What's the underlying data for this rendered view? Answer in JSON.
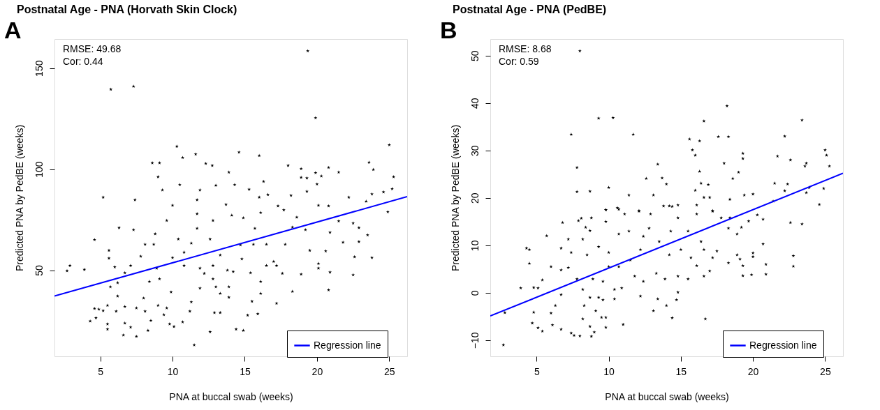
{
  "chart_data": [
    {
      "type": "scatter",
      "title": "Postnatal Age - PNA (Horvath Skin Clock)",
      "xlabel": "PNA at buccal swab (weeks)",
      "ylabel": "Predicted PNA by PedBE (weeks)",
      "xlim": [
        1.83,
        26.24
      ],
      "ylim": [
        7.4,
        164.4
      ],
      "xticks": [
        5,
        10,
        15,
        20,
        25
      ],
      "yticks": [
        50,
        100,
        150
      ],
      "legend": "bottom right",
      "annotations": [
        "A",
        "RMSE: 49.68",
        "Cor: 0.44"
      ],
      "series": [
        {
          "color": "#000000",
          "marker": "star",
          "x": [
            19.36,
            5.73,
            7.3,
            19.9,
            25.0,
            10.3,
            10.7,
            11.6,
            14.6,
            16.0,
            8.6,
            9.1,
            12.3,
            12.75,
            18.0,
            18.9,
            20.8,
            23.6,
            23.9,
            21.5,
            19.9,
            13.9,
            25.3,
            20.3,
            18.9,
            19.3,
            9.0,
            16.3,
            10.5,
            13.0,
            14.3,
            20.0,
            5.2,
            9.3,
            11.9,
            15.3,
            19.3,
            25.2,
            24.6,
            23.8,
            22.2,
            16.6,
            18.2,
            7.4,
            11.7,
            16.0,
            23.4,
            2.7,
            2.9,
            3.9,
            4.6,
            4.3,
            4.7,
            4.6,
            4.9,
            5.2,
            5.5,
            5.5,
            5.5,
            6.6,
            7.5,
            8.3,
            11.5,
            12.6,
            14.4,
            14.9,
            15.2,
            15.9,
            12.9,
            13.3,
            17.2,
            20.8,
            18.3,
            20.9,
            22.5,
            18.9,
            20.1,
            20.1,
            22.6,
            23.8,
            24.9,
            22.9,
            21.8,
            20.9,
            21.5,
            22.5,
            22.9,
            23.5,
            19.5,
            20.6,
            20.1,
            20.8,
            19.2,
            18.6,
            17.7,
            17.3,
            17.8,
            17.0,
            17.6,
            16.1,
            16.5,
            16.1,
            15.4,
            15.5,
            14.8,
            14.7,
            13.9,
            13.8,
            14.2,
            13.3,
            13.0,
            12.2,
            11.9,
            11.3,
            11.2,
            10.7,
            10.1,
            9.8,
            9.4,
            9.6,
            9.0,
            9.1,
            8.9,
            8.5,
            8.1,
            8.0,
            7.5,
            7.1,
            6.7,
            6.7,
            6.2,
            6.1,
            6.2,
            5.7,
            6.0,
            5.6,
            5.6,
            6.3,
            7.3,
            6.7,
            7.1,
            7.8,
            8.1,
            8.7,
            8.8,
            9.6,
            10.0,
            10.4,
            10.0,
            10.8,
            10.8,
            11.3,
            11.7,
            11.7,
            12.6,
            12.8,
            13.7,
            14.1,
            14.9,
            16.1,
            15.7,
            16.5,
            15.6,
            13.3,
            12.8,
            13.9,
            11.9,
            9.9,
            8.4,
            12.8,
            18.3,
            17.2
          ],
          "values": [
            158.5,
            139.5,
            141,
            125.4,
            112,
            111.3,
            105.7,
            107.4,
            108.4,
            106.7,
            103.1,
            103.1,
            102.8,
            101.8,
            101.8,
            100.2,
            100.8,
            103.4,
            99.8,
            98.5,
            98.2,
            98.5,
            96.2,
            96.6,
            95.9,
            95.6,
            96.2,
            93.9,
            92.3,
            92.0,
            92.3,
            92.6,
            86.1,
            89.7,
            89.7,
            90.0,
            89.0,
            90.3,
            88.7,
            87.7,
            86.1,
            87.4,
            87.0,
            84.8,
            84.8,
            86.1,
            84.1,
            49.7,
            52.3,
            50.3,
            65.1,
            24.8,
            26.4,
            31.0,
            30.7,
            30.0,
            32.6,
            20.8,
            23.4,
            17.9,
            17.2,
            20.2,
            13.0,
            19.5,
            20.8,
            20.2,
            27.7,
            28.4,
            29.0,
            29.0,
            33.6,
            40.2,
            39.5,
            49.0,
            47.7,
            48.0,
            51.0,
            53.3,
            56.6,
            56.2,
            78.9,
            64.1,
            63.8,
            68.7,
            74.3,
            73.3,
            71.0,
            67.4,
            59.8,
            59.5,
            82.1,
            81.8,
            70.0,
            76.2,
            79.8,
            81.8,
            62.8,
            54.3,
            48.4,
            44.4,
            52.3,
            38.5,
            48.7,
            34.6,
            55.6,
            62.5,
            36.6,
            50.0,
            49.3,
            38.5,
            41.8,
            48.4,
            41.1,
            34.3,
            29.7,
            24.4,
            22.1,
            23.4,
            28.0,
            31.3,
            32.6,
            45.7,
            51.0,
            25.1,
            29.7,
            36.2,
            31.3,
            21.8,
            23.8,
            32.0,
            37.2,
            29.7,
            43.8,
            41.8,
            51.6,
            55.9,
            59.8,
            71.0,
            70.0,
            48.7,
            52.3,
            56.9,
            62.8,
            62.8,
            68.0,
            74.6,
            82.1,
            65.4,
            56.2,
            52.3,
            58.9,
            63.4,
            70.7,
            77.9,
            65.4,
            74.6,
            82.5,
            77.2,
            75.9,
            78.5,
            70.7,
            62.8,
            62.8,
            57.5,
            52.3,
            41.8,
            51.0,
            39.2,
            44.4,
            45.7,
            71.3,
            52.3
          ]
        },
        {
          "name": "Regression line",
          "type": "line",
          "color": "#0000ff",
          "x": [
            1.83,
            26.24
          ],
          "values": [
            37.2,
            86.4
          ]
        }
      ]
    },
    {
      "type": "scatter",
      "title": "Postnatal Age - PNA (PedBE)",
      "xlabel": "PNA at buccal swab (weeks)",
      "ylabel": "Predicted PNA by PedBE (weeks)",
      "xlim": [
        1.79,
        26.24
      ],
      "ylim": [
        -13.4,
        53.5
      ],
      "xticks": [
        5,
        10,
        15,
        20,
        25
      ],
      "yticks": [
        -10,
        0,
        10,
        20,
        30,
        40,
        50
      ],
      "legend": "bottom right",
      "annotations": [
        "B",
        "RMSE: 8.68",
        "Cor: 0.59"
      ],
      "series": [
        {
          "color": "#000000",
          "marker": "star",
          "x": [
            8.0,
            7.4,
            9.3,
            10.3,
            11.7,
            7.8,
            7.8,
            8.7,
            10.0,
            11.4,
            12.6,
            13.4,
            13.7,
            14.0,
            13.1,
            15.6,
            16.3,
            16.6,
            15.8,
            16.0,
            16.3,
            16.4,
            16.9,
            16.0,
            16.6,
            17.0,
            17.6,
            18.2,
            18.3,
            18.0,
            18.6,
            19.0,
            19.3,
            19.3,
            19.4,
            20.0,
            18.4,
            21.5,
            21.7,
            22.2,
            22.6,
            22.4,
            22.2,
            23.4,
            23.6,
            23.7,
            23.7,
            23.9,
            25.0,
            25.1,
            25.3,
            24.9,
            24.6,
            21.4,
            10.6,
            9.8,
            12.1,
            14.2,
            14.8,
            16.1,
            17.2,
            2.7,
            2.8,
            3.9,
            4.3,
            4.5,
            4.5,
            4.8,
            4.8,
            4.7,
            5.1,
            5.4,
            5.1,
            5.7,
            5.4,
            6.0,
            6.0,
            6.1,
            6.3,
            6.7,
            6.7,
            6.7,
            6.8,
            6.7,
            7.2,
            7.2,
            7.4,
            7.6,
            7.4,
            8.0,
            7.9,
            8.1,
            8.8,
            8.4,
            8.7,
            8.2,
            8.5,
            7.8,
            8.2,
            8.9,
            8.7,
            8.3,
            8.2,
            8.7,
            8.8,
            9.0,
            9.1,
            9.3,
            9.3,
            9.8,
            9.8,
            10.0,
            10.0,
            9.6,
            9.6,
            9.8,
            9.8,
            9.5,
            10.4,
            10.4,
            10.7,
            10.7,
            11.0,
            10.9,
            10.7,
            11.1,
            11.4,
            11.5,
            11.8,
            12.2,
            12.4,
            12.2,
            12.4,
            12.1,
            12.8,
            12.9,
            13.1,
            13.3,
            13.5,
            13.4,
            13.8,
            14.0,
            13.9,
            14.2,
            14.3,
            14.4,
            14.4,
            14.7,
            14.8,
            14.8,
            14.8,
            15.0,
            15.5,
            15.5,
            15.7,
            16.1,
            16.1,
            16.4,
            16.6,
            16.6,
            16.7,
            17.0,
            17.2,
            17.2,
            17.5,
            17.8,
            18.3,
            18.3,
            18.4,
            18.9,
            18.9,
            19.2,
            19.1,
            19.3,
            19.3,
            19.7,
            19.9,
            20.0,
            20.0,
            20.7,
            20.7,
            20.9,
            20.9,
            22.6,
            22.8,
            22.8,
            23.4,
            20.3
          ],
          "values": [
            51.0,
            33.4,
            36.8,
            36.9,
            33.4,
            26.4,
            21.3,
            21.4,
            22.2,
            20.6,
            24.1,
            27.1,
            24.2,
            22.9,
            20.6,
            32.4,
            32.0,
            36.2,
            30.1,
            29.0,
            25.6,
            23.1,
            22.8,
            21.6,
            20.1,
            20.1,
            32.9,
            39.4,
            32.9,
            27.3,
            24.1,
            25.4,
            29.4,
            28.3,
            20.6,
            20.8,
            19.7,
            23.1,
            28.8,
            33.0,
            28.0,
            22.9,
            21.5,
            36.4,
            26.7,
            27.3,
            21.1,
            22.2,
            30.1,
            29.0,
            26.7,
            22.0,
            18.6,
            19.3,
            17.9,
            17.5,
            17.3,
            18.3,
            18.5,
            18.5,
            17.3,
            -11.0,
            -4.2,
            1.0,
            9.4,
            9.1,
            6.2,
            1.1,
            -4.1,
            -6.4,
            -7.4,
            -8.1,
            1.0,
            12.0,
            2.7,
            5.5,
            -4.3,
            -6.8,
            -2.7,
            -7.7,
            -0.4,
            4.8,
            14.8,
            9.4,
            5.3,
            11.3,
            -8.5,
            -9.0,
            8.5,
            -9.1,
            15.2,
            15.7,
            15.8,
            13.8,
            13.1,
            11.3,
            8.0,
            2.9,
            0.7,
            2.9,
            -1.0,
            -2.7,
            -5.5,
            -7.1,
            -9.2,
            -8.3,
            -3.8,
            -1.0,
            9.7,
            17.5,
            15.0,
            8.5,
            5.5,
            2.4,
            -1.5,
            -5.2,
            -7.3,
            -5.2,
            0.7,
            -1.3,
            17.6,
            12.4,
            -6.7,
            1.0,
            5.5,
            16.6,
            13.0,
            6.9,
            3.5,
            -0.7,
            2.4,
            9.1,
            11.9,
            17.2,
            13.6,
            16.6,
            -3.8,
            4.1,
            10.8,
            -1.3,
            18.3,
            -2.7,
            2.9,
            8.0,
            13.0,
            18.2,
            -5.3,
            -1.5,
            0.1,
            15.8,
            3.5,
            9.1,
            13.0,
            2.9,
            7.4,
            16.6,
            5.7,
            10.8,
            9.1,
            3.5,
            -5.5,
            4.6,
            7.4,
            17.2,
            8.8,
            15.8,
            13.6,
            6.3,
            15.8,
            12.4,
            8.0,
            13.8,
            7.1,
            5.7,
            3.6,
            15.1,
            3.8,
            8.4,
            7.6,
            10.3,
            15.5,
            6.0,
            3.9,
            14.8,
            7.8,
            5.6,
            14.5,
            16.4
          ]
        },
        {
          "name": "Regression line",
          "type": "line",
          "color": "#0000ff",
          "x": [
            1.79,
            26.24
          ],
          "values": [
            -4.9,
            25.2
          ]
        }
      ]
    }
  ]
}
